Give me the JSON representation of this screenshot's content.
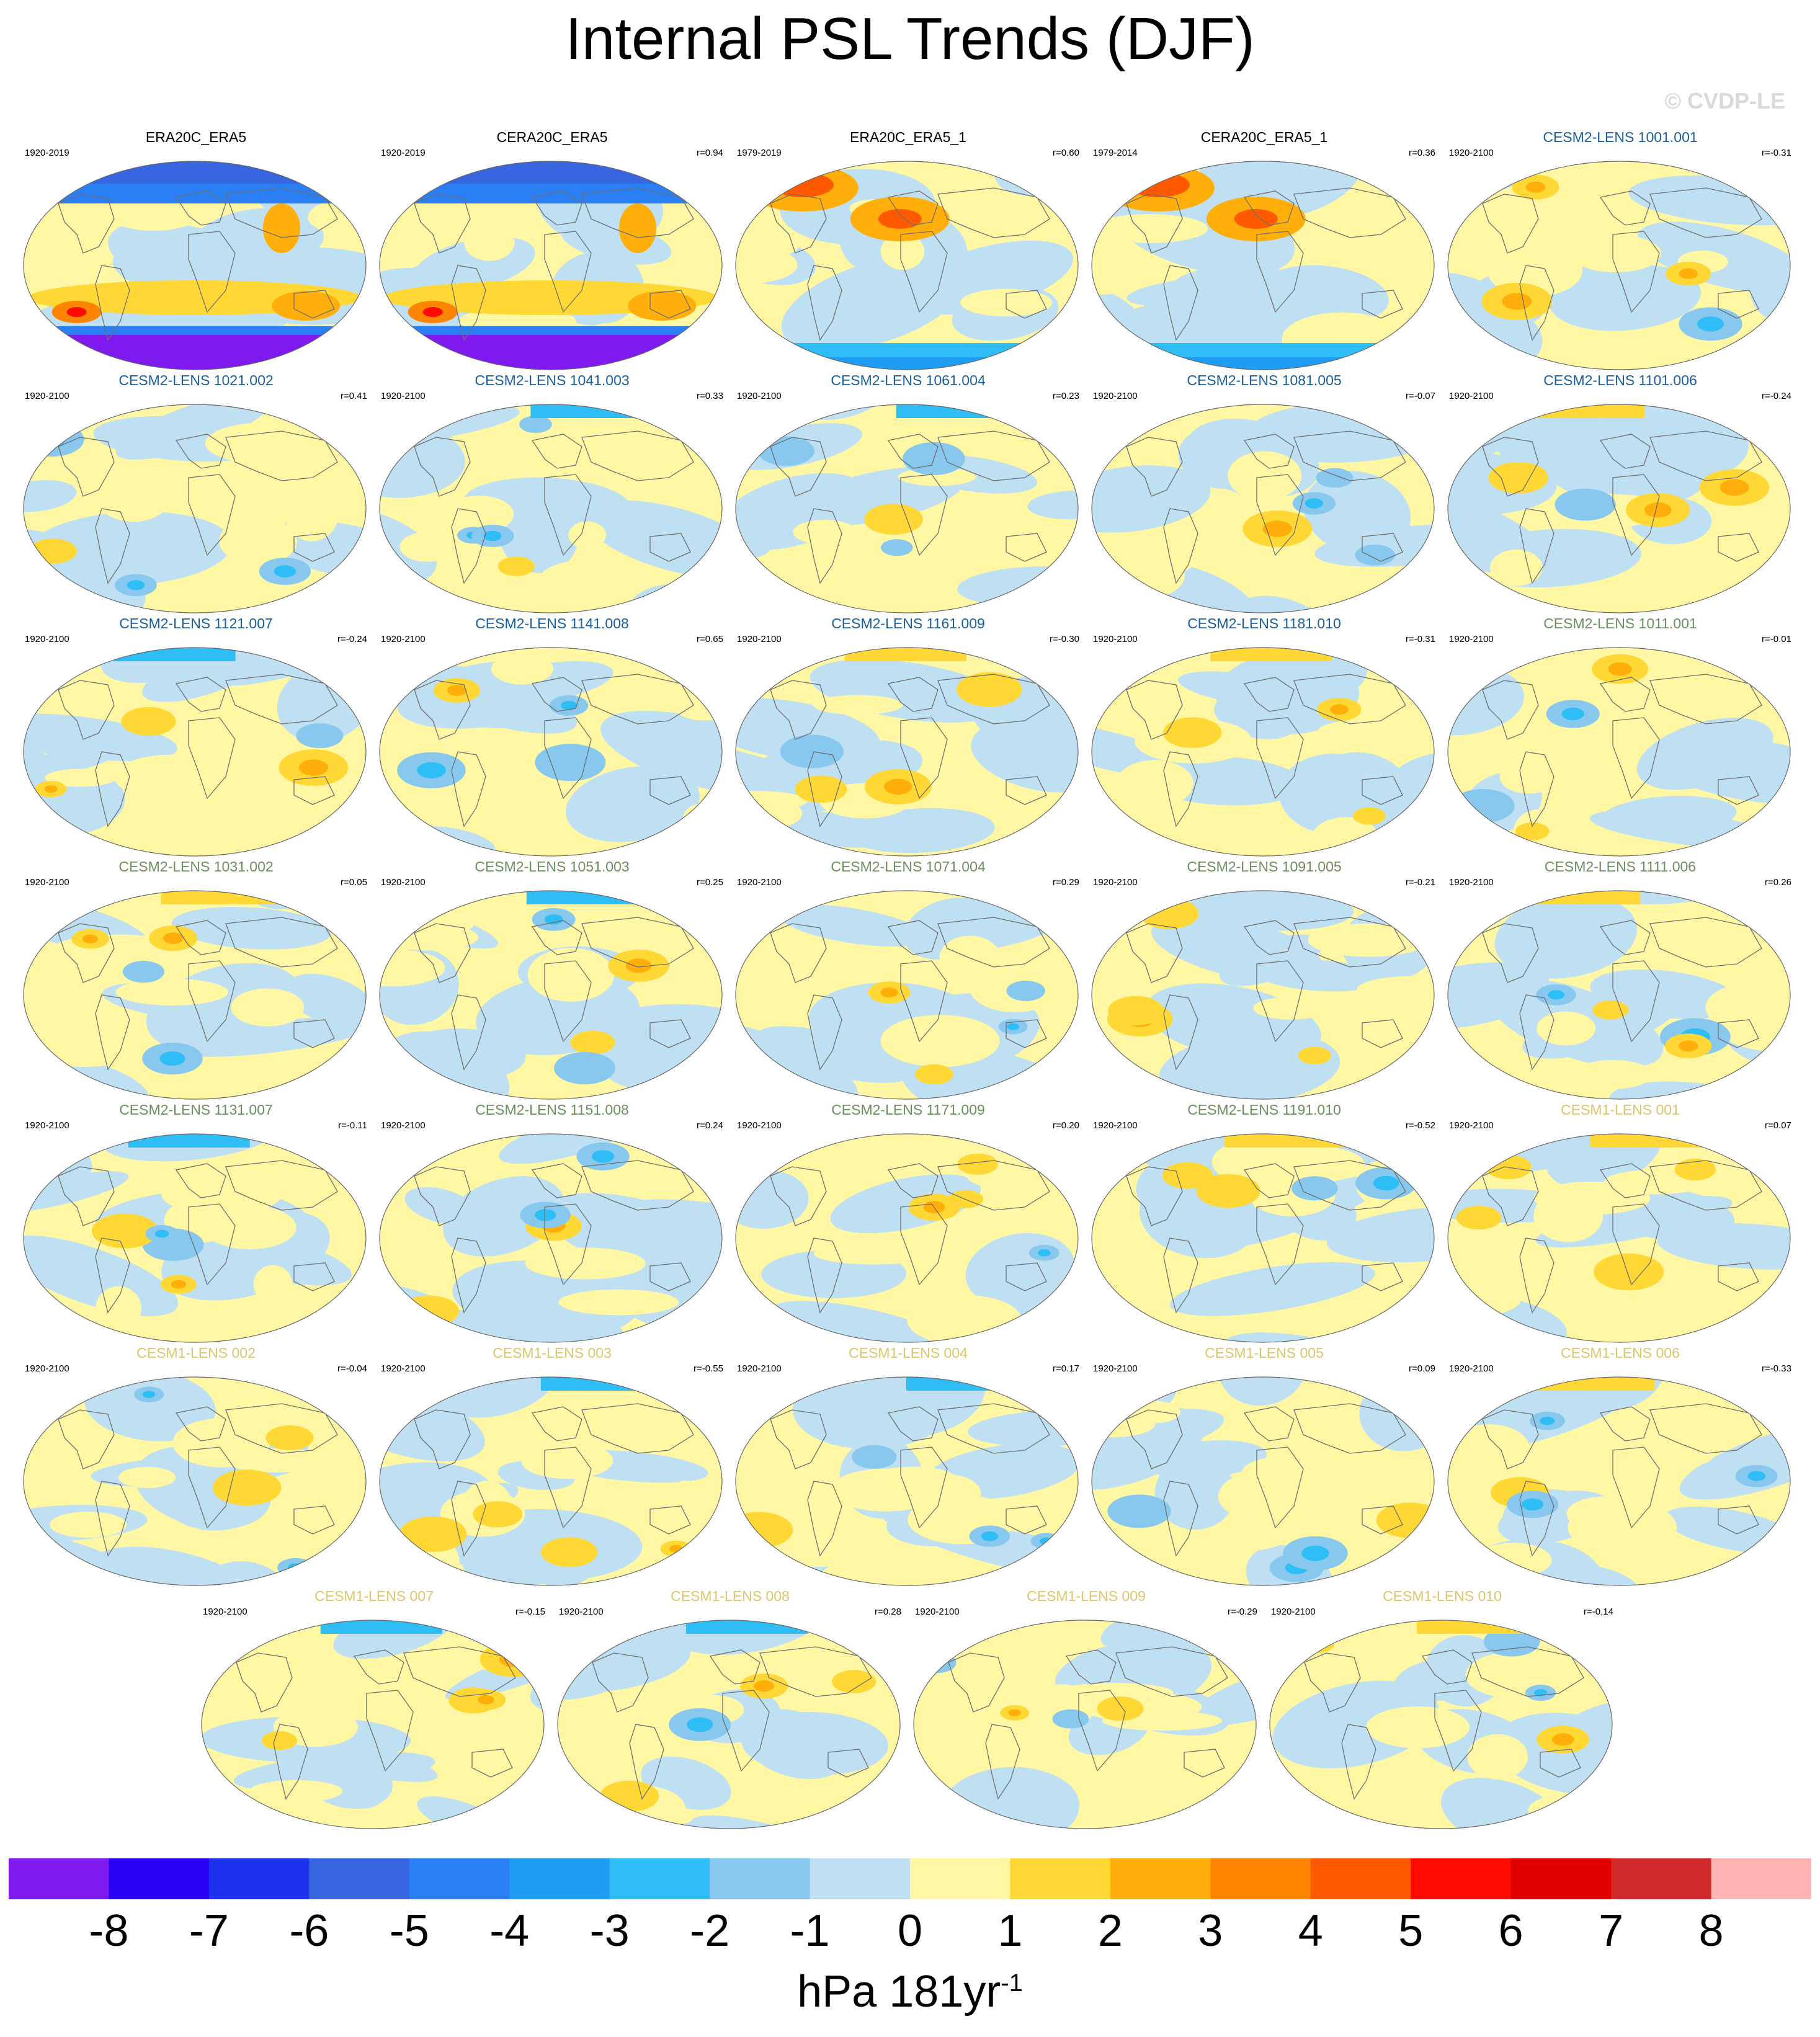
{
  "title": "Internal PSL Trends (DJF)",
  "watermark": "© CVDP-LE",
  "panels": [
    {
      "name": "ERA20C_ERA5",
      "period": "1920-2019",
      "corr": "",
      "color": "#000000",
      "pattern": "obs-a"
    },
    {
      "name": "CERA20C_ERA5",
      "period": "1920-2019",
      "corr": "r=0.94",
      "color": "#000000",
      "pattern": "obs-a"
    },
    {
      "name": "ERA20C_ERA5_1",
      "period": "1979-2019",
      "corr": "r=0.60",
      "color": "#000000",
      "pattern": "obs-b"
    },
    {
      "name": "CERA20C_ERA5_1",
      "period": "1979-2014",
      "corr": "r=0.36",
      "color": "#000000",
      "pattern": "obs-b"
    },
    {
      "name": "CESM2-LENS 1001.001",
      "period": "1920-2100",
      "corr": "r=-0.31",
      "color": "#1a5f9e",
      "pattern": "m"
    },
    {
      "name": "CESM2-LENS 1021.002",
      "period": "1920-2100",
      "corr": "r=0.41",
      "color": "#1a5f9e",
      "pattern": "m"
    },
    {
      "name": "CESM2-LENS 1041.003",
      "period": "1920-2100",
      "corr": "r=0.33",
      "color": "#1a5f9e",
      "pattern": "m"
    },
    {
      "name": "CESM2-LENS 1061.004",
      "period": "1920-2100",
      "corr": "r=0.23",
      "color": "#1a5f9e",
      "pattern": "m"
    },
    {
      "name": "CESM2-LENS 1081.005",
      "period": "1920-2100",
      "corr": "r=-0.07",
      "color": "#1a5f9e",
      "pattern": "m"
    },
    {
      "name": "CESM2-LENS 1101.006",
      "period": "1920-2100",
      "corr": "r=-0.24",
      "color": "#1a5f9e",
      "pattern": "m"
    },
    {
      "name": "CESM2-LENS 1121.007",
      "period": "1920-2100",
      "corr": "r=-0.24",
      "color": "#1a5f9e",
      "pattern": "m"
    },
    {
      "name": "CESM2-LENS 1141.008",
      "period": "1920-2100",
      "corr": "r=0.65",
      "color": "#1a5f9e",
      "pattern": "m"
    },
    {
      "name": "CESM2-LENS 1161.009",
      "period": "1920-2100",
      "corr": "r=-0.30",
      "color": "#1a5f9e",
      "pattern": "m"
    },
    {
      "name": "CESM2-LENS 1181.010",
      "period": "1920-2100",
      "corr": "r=-0.31",
      "color": "#1a5f9e",
      "pattern": "m"
    },
    {
      "name": "CESM2-LENS 1011.001",
      "period": "1920-2100",
      "corr": "r=-0.01",
      "color": "#6b8f5e",
      "pattern": "m"
    },
    {
      "name": "CESM2-LENS 1031.002",
      "period": "1920-2100",
      "corr": "r=0.05",
      "color": "#6b8f5e",
      "pattern": "m"
    },
    {
      "name": "CESM2-LENS 1051.003",
      "period": "1920-2100",
      "corr": "r=0.25",
      "color": "#6b8f5e",
      "pattern": "m"
    },
    {
      "name": "CESM2-LENS 1071.004",
      "period": "1920-2100",
      "corr": "r=0.29",
      "color": "#6b8f5e",
      "pattern": "m"
    },
    {
      "name": "CESM2-LENS 1091.005",
      "period": "1920-2100",
      "corr": "r=-0.21",
      "color": "#6b8f5e",
      "pattern": "m"
    },
    {
      "name": "CESM2-LENS 1111.006",
      "period": "1920-2100",
      "corr": "r=0.26",
      "color": "#6b8f5e",
      "pattern": "m"
    },
    {
      "name": "CESM2-LENS 1131.007",
      "period": "1920-2100",
      "corr": "r=-0.11",
      "color": "#6b8f5e",
      "pattern": "m"
    },
    {
      "name": "CESM2-LENS 1151.008",
      "period": "1920-2100",
      "corr": "r=0.24",
      "color": "#6b8f5e",
      "pattern": "m"
    },
    {
      "name": "CESM2-LENS 1171.009",
      "period": "1920-2100",
      "corr": "r=0.20",
      "color": "#6b8f5e",
      "pattern": "m"
    },
    {
      "name": "CESM2-LENS 1191.010",
      "period": "1920-2100",
      "corr": "r=-0.52",
      "color": "#6b8f5e",
      "pattern": "m"
    },
    {
      "name": "CESM1-LENS 001",
      "period": "1920-2100",
      "corr": "r=0.07",
      "color": "#dcc56a",
      "pattern": "m"
    },
    {
      "name": "CESM1-LENS 002",
      "period": "1920-2100",
      "corr": "r=-0.04",
      "color": "#dcc56a",
      "pattern": "m"
    },
    {
      "name": "CESM1-LENS 003",
      "period": "1920-2100",
      "corr": "r=-0.55",
      "color": "#dcc56a",
      "pattern": "m"
    },
    {
      "name": "CESM1-LENS 004",
      "period": "1920-2100",
      "corr": "r=0.17",
      "color": "#dcc56a",
      "pattern": "m"
    },
    {
      "name": "CESM1-LENS 005",
      "period": "1920-2100",
      "corr": "r=0.09",
      "color": "#dcc56a",
      "pattern": "m"
    },
    {
      "name": "CESM1-LENS 006",
      "period": "1920-2100",
      "corr": "r=-0.33",
      "color": "#dcc56a",
      "pattern": "m"
    },
    {
      "name": "CESM1-LENS 007",
      "period": "1920-2100",
      "corr": "r=-0.15",
      "color": "#dcc56a",
      "pattern": "m"
    },
    {
      "name": "CESM1-LENS 008",
      "period": "1920-2100",
      "corr": "r=0.28",
      "color": "#dcc56a",
      "pattern": "m"
    },
    {
      "name": "CESM1-LENS 009",
      "period": "1920-2100",
      "corr": "r=-0.29",
      "color": "#dcc56a",
      "pattern": "m"
    },
    {
      "name": "CESM1-LENS 010",
      "period": "1920-2100",
      "corr": "r=-0.14",
      "color": "#dcc56a",
      "pattern": "m"
    }
  ],
  "colorbar": {
    "colors": [
      "#7f1aee",
      "#2a00f7",
      "#1e32ee",
      "#3766e0",
      "#2a7ff5",
      "#1e9df2",
      "#2ebdf5",
      "#88c8ef",
      "#bee0f2",
      "#fff7a3",
      "#ffd835",
      "#ffae0a",
      "#ff8500",
      "#ff5a00",
      "#ff0a00",
      "#e00000",
      "#d02a2a",
      "#ffb3b3"
    ],
    "labels": [
      "-8",
      "-7",
      "-6",
      "-5",
      "-4",
      "-3",
      "-2",
      "-1",
      "0",
      "1",
      "2",
      "3",
      "4",
      "5",
      "6",
      "7",
      "8"
    ]
  },
  "units": {
    "base": "hPa 181yr",
    "sup": "-1"
  }
}
